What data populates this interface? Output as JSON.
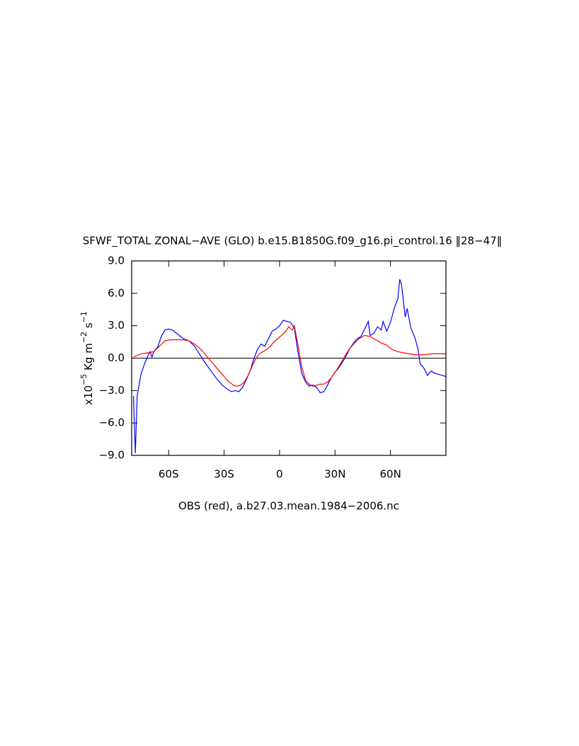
{
  "chart_data": {
    "type": "line",
    "title": "SFWF_TOTAL ZONAL−AVE (GLO) b.e15.B1850G.f09_g16.pi_control.16 ‖28−47‖",
    "xlabel": "OBS (red), a.b27.03.mean.1984−2006.nc",
    "ylabel": [
      "x10",
      "−5",
      " Kg m",
      "−2",
      " s",
      "−1"
    ],
    "xlim": [
      -80,
      90
    ],
    "xticks": [
      {
        "value": -60,
        "label": "60S"
      },
      {
        "value": -30,
        "label": "30S"
      },
      0,
      {
        "value": 30,
        "label": "30N"
      },
      {
        "value": 60,
        "label": "60N"
      }
    ],
    "ylim": [
      -9,
      9
    ],
    "yticks": [
      {
        "value": -9,
        "label": "−9.0"
      },
      {
        "value": -6,
        "label": "−6.0"
      },
      {
        "value": -3,
        "label": "−3.0"
      },
      {
        "value": 0,
        "label": "0.0"
      },
      {
        "value": 3,
        "label": "3.0"
      },
      {
        "value": 6,
        "label": "6.0"
      },
      {
        "value": 9,
        "label": "9.0"
      }
    ],
    "reference_line": 0,
    "series": [
      {
        "color": "#0000ff",
        "x": [
          -79,
          -78,
          -77,
          -75,
          -73,
          -71,
          -70,
          -69,
          -68,
          -66,
          -64,
          -62,
          -60,
          -58,
          -55,
          -52,
          -49,
          -46,
          -43,
          -40,
          -37,
          -34,
          -31,
          -28,
          -26,
          -24,
          -22,
          -20,
          -18,
          -16,
          -14,
          -12,
          -10,
          -8,
          -6,
          -4,
          -2,
          0,
          2,
          4,
          6,
          8,
          10,
          12,
          14,
          16,
          18,
          20,
          22,
          24,
          26,
          28,
          30,
          32,
          34,
          36,
          38,
          40,
          42,
          44,
          46,
          48,
          49,
          51,
          53,
          55,
          56,
          58,
          60,
          62,
          64,
          65,
          66,
          68,
          69,
          71,
          73,
          75,
          76,
          78,
          80,
          82,
          84,
          86,
          88,
          90
        ],
        "values": [
          -3.5,
          -8.8,
          -3.5,
          -1.5,
          -0.5,
          0.3,
          0.6,
          0.1,
          0.6,
          1.0,
          2.0,
          2.6,
          2.7,
          2.6,
          2.2,
          1.8,
          1.6,
          1.1,
          0.3,
          -0.5,
          -1.2,
          -1.9,
          -2.5,
          -2.9,
          -3.1,
          -3.0,
          -3.1,
          -2.7,
          -2.0,
          -1.2,
          -0.1,
          0.8,
          1.3,
          1.1,
          1.8,
          2.5,
          2.7,
          3.0,
          3.5,
          3.4,
          3.3,
          2.8,
          0.5,
          -1.4,
          -2.2,
          -2.6,
          -2.5,
          -2.7,
          -3.2,
          -3.1,
          -2.5,
          -1.8,
          -1.3,
          -0.9,
          -0.4,
          0.2,
          0.9,
          1.4,
          1.8,
          2.0,
          2.7,
          3.4,
          2.1,
          2.3,
          2.9,
          2.6,
          3.4,
          2.5,
          3.3,
          4.6,
          5.5,
          7.3,
          6.8,
          3.8,
          4.6,
          2.8,
          2.0,
          0.8,
          -0.5,
          -0.9,
          -1.6,
          -1.2,
          -1.4,
          -1.5,
          -1.6,
          -1.7
        ]
      },
      {
        "color": "#ff0000",
        "x": [
          -79,
          -75,
          -71,
          -68,
          -65,
          -62,
          -59,
          -55,
          -52,
          -49,
          -46,
          -43,
          -40,
          -37,
          -34,
          -31,
          -28,
          -25,
          -23,
          -21,
          -19,
          -17,
          -15,
          -13,
          -11,
          -9,
          -7,
          -5,
          -3,
          -1,
          1,
          3,
          5,
          7,
          8,
          10,
          12,
          14,
          16,
          18,
          20,
          22,
          24,
          26,
          28,
          30,
          32,
          34,
          36,
          38,
          40,
          43,
          46,
          49,
          52,
          55,
          58,
          61,
          64,
          67,
          70,
          74,
          78,
          82,
          86,
          90
        ],
        "values": [
          0.1,
          0.4,
          0.5,
          0.6,
          1.1,
          1.6,
          1.7,
          1.7,
          1.7,
          1.6,
          1.3,
          0.9,
          0.3,
          -0.3,
          -0.9,
          -1.5,
          -2.1,
          -2.5,
          -2.6,
          -2.5,
          -2.2,
          -1.6,
          -0.8,
          -0.1,
          0.4,
          0.6,
          0.8,
          1.1,
          1.5,
          1.8,
          2.1,
          2.4,
          2.9,
          2.6,
          3.0,
          1.2,
          -0.8,
          -2.0,
          -2.4,
          -2.6,
          -2.5,
          -2.4,
          -2.4,
          -2.2,
          -1.8,
          -1.3,
          -0.8,
          -0.2,
          0.4,
          0.9,
          1.3,
          1.8,
          2.1,
          2.0,
          1.7,
          1.4,
          1.2,
          0.8,
          0.6,
          0.5,
          0.4,
          0.3,
          0.3,
          0.4,
          0.4,
          0.4
        ]
      }
    ]
  }
}
